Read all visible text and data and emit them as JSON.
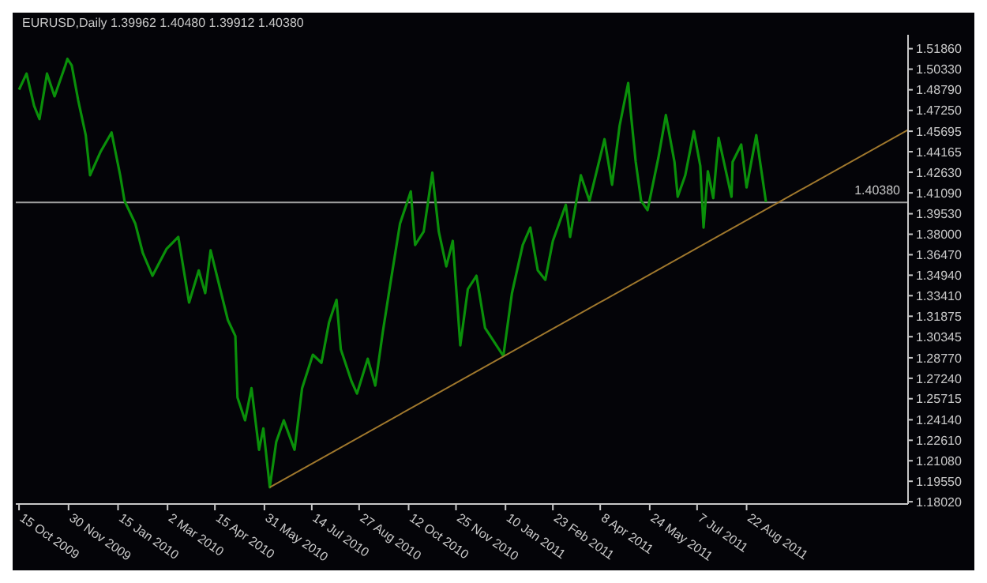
{
  "chart_data": {
    "type": "line",
    "title": "EURUSD,Daily  1.39962 1.40480 1.39912 1.40380",
    "series": [
      {
        "color": "#0a8f0a",
        "x": [
          "2009-10-15",
          "2009-10-22",
          "2009-10-29",
          "2009-11-03",
          "2009-11-10",
          "2009-11-17",
          "2009-11-27",
          "2009-11-29",
          "2009-12-03",
          "2009-12-09",
          "2009-12-16",
          "2009-12-20",
          "2009-12-30",
          "2010-01-09",
          "2010-01-17",
          "2010-01-21",
          "2010-01-31",
          "2010-02-07",
          "2010-02-16",
          "2010-03-01",
          "2010-03-12",
          "2010-03-22",
          "2010-03-31",
          "2010-04-06",
          "2010-04-11",
          "2010-04-27",
          "2010-05-04",
          "2010-05-06",
          "2010-05-13",
          "2010-05-19",
          "2010-05-26",
          "2010-05-30",
          "2010-06-05",
          "2010-06-11",
          "2010-06-18",
          "2010-06-28",
          "2010-07-05",
          "2010-07-15",
          "2010-07-23",
          "2010-07-30",
          "2010-08-06",
          "2010-08-10",
          "2010-08-20",
          "2010-08-25",
          "2010-09-04",
          "2010-09-11",
          "2010-09-18",
          "2010-09-25",
          "2010-10-04",
          "2010-10-14",
          "2010-10-18",
          "2010-10-26",
          "2010-11-03",
          "2010-11-09",
          "2010-11-16",
          "2010-11-22",
          "2010-11-29",
          "2010-12-06",
          "2010-12-14",
          "2010-12-22",
          "2011-01-08",
          "2011-01-16",
          "2011-01-26",
          "2011-02-02",
          "2011-02-09",
          "2011-02-16",
          "2011-02-23",
          "2011-03-07",
          "2011-03-11",
          "2011-03-21",
          "2011-03-29",
          "2011-04-12",
          "2011-04-19",
          "2011-04-26",
          "2011-05-04",
          "2011-05-06",
          "2011-05-11",
          "2011-05-16",
          "2011-05-22",
          "2011-06-01",
          "2011-06-08",
          "2011-06-16",
          "2011-06-19",
          "2011-06-26",
          "2011-07-04",
          "2011-07-10",
          "2011-07-13",
          "2011-07-17",
          "2011-07-22",
          "2011-07-27",
          "2011-08-08",
          "2011-08-09",
          "2011-08-17",
          "2011-08-22",
          "2011-08-31",
          "2011-09-03",
          "2011-09-09"
        ],
        "values": [
          1.488,
          1.5,
          1.476,
          1.466,
          1.5,
          1.483,
          1.506,
          1.511,
          1.506,
          1.48,
          1.454,
          1.424,
          1.442,
          1.456,
          1.424,
          1.405,
          1.388,
          1.366,
          1.349,
          1.369,
          1.378,
          1.329,
          1.353,
          1.336,
          1.368,
          1.316,
          1.304,
          1.258,
          1.241,
          1.265,
          1.219,
          1.235,
          1.191,
          1.225,
          1.241,
          1.219,
          1.265,
          1.29,
          1.284,
          1.314,
          1.331,
          1.294,
          1.27,
          1.261,
          1.287,
          1.267,
          1.307,
          1.343,
          1.388,
          1.412,
          1.372,
          1.382,
          1.426,
          1.382,
          1.356,
          1.375,
          1.297,
          1.339,
          1.349,
          1.31,
          1.289,
          1.336,
          1.372,
          1.385,
          1.353,
          1.346,
          1.375,
          1.402,
          1.378,
          1.424,
          1.405,
          1.451,
          1.417,
          1.461,
          1.493,
          1.474,
          1.434,
          1.405,
          1.398,
          1.437,
          1.469,
          1.434,
          1.408,
          1.424,
          1.457,
          1.431,
          1.385,
          1.427,
          1.407,
          1.452,
          1.408,
          1.434,
          1.447,
          1.415,
          1.454,
          1.437,
          1.404
        ]
      },
      {
        "type": "line",
        "color": "#a0782d",
        "x": [
          "2010-06-05",
          "2012-01-19"
        ],
        "values": [
          1.191,
          1.458
        ]
      }
    ],
    "xlim": [
      "2009-10-12",
      "2012-01-19"
    ],
    "xticks": [
      {
        "value": "2009-10-15",
        "label": "15 Oct 2009"
      },
      {
        "value": "2009-11-30",
        "label": "30 Nov 2009"
      },
      {
        "value": "2010-01-15",
        "label": "15 Jan 2010"
      },
      {
        "value": "2010-03-02",
        "label": "2 Mar 2010"
      },
      {
        "value": "2010-04-15",
        "label": "15 Apr 2010"
      },
      {
        "value": "2010-05-31",
        "label": "31 May 2010"
      },
      {
        "value": "2010-07-14",
        "label": "14 Jul 2010"
      },
      {
        "value": "2010-08-27",
        "label": "27 Aug 2010"
      },
      {
        "value": "2010-10-12",
        "label": "12 Oct 2010"
      },
      {
        "value": "2010-11-25",
        "label": "25 Nov 2010"
      },
      {
        "value": "2011-01-10",
        "label": "10 Jan 2011"
      },
      {
        "value": "2011-02-23",
        "label": "23 Feb 2011"
      },
      {
        "value": "2011-04-08",
        "label": "8 Apr 2011"
      },
      {
        "value": "2011-05-24",
        "label": "24 May 2011"
      },
      {
        "value": "2011-07-07",
        "label": "7 Jul 2011"
      },
      {
        "value": "2011-08-22",
        "label": "22 Aug 2011"
      }
    ],
    "ylim": [
      1.1785,
      1.529
    ],
    "yticks": [
      {
        "value": 1.1802,
        "label": "1.18020"
      },
      {
        "value": 1.1955,
        "label": "1.19550"
      },
      {
        "value": 1.2108,
        "label": "1.21080"
      },
      {
        "value": 1.2261,
        "label": "1.22610"
      },
      {
        "value": 1.2414,
        "label": "1.24140"
      },
      {
        "value": 1.25715,
        "label": "1.25715"
      },
      {
        "value": 1.2724,
        "label": "1.27240"
      },
      {
        "value": 1.2877,
        "label": "1.28770"
      },
      {
        "value": 1.30345,
        "label": "1.30345"
      },
      {
        "value": 1.31875,
        "label": "1.31875"
      },
      {
        "value": 1.3341,
        "label": "1.33410"
      },
      {
        "value": 1.3494,
        "label": "1.34940"
      },
      {
        "value": 1.3647,
        "label": "1.36470"
      },
      {
        "value": 1.38,
        "label": "1.38000"
      },
      {
        "value": 1.3953,
        "label": "1.39530"
      },
      {
        "value": 1.4109,
        "label": "1.41090"
      },
      {
        "value": 1.4263,
        "label": "1.42630"
      },
      {
        "value": 1.44165,
        "label": "1.44165"
      },
      {
        "value": 1.45695,
        "label": "1.45695"
      },
      {
        "value": 1.4725,
        "label": "1.47250"
      },
      {
        "value": 1.4879,
        "label": "1.48790"
      },
      {
        "value": 1.5033,
        "label": "1.50330"
      },
      {
        "value": 1.5186,
        "label": "1.51860"
      }
    ],
    "ref_lines": [
      {
        "axis": "y",
        "value": 1.4038,
        "label": "1.40380",
        "color": "#a0a0a0"
      }
    ],
    "grid": false,
    "marker": "none",
    "line_style": "solid"
  }
}
